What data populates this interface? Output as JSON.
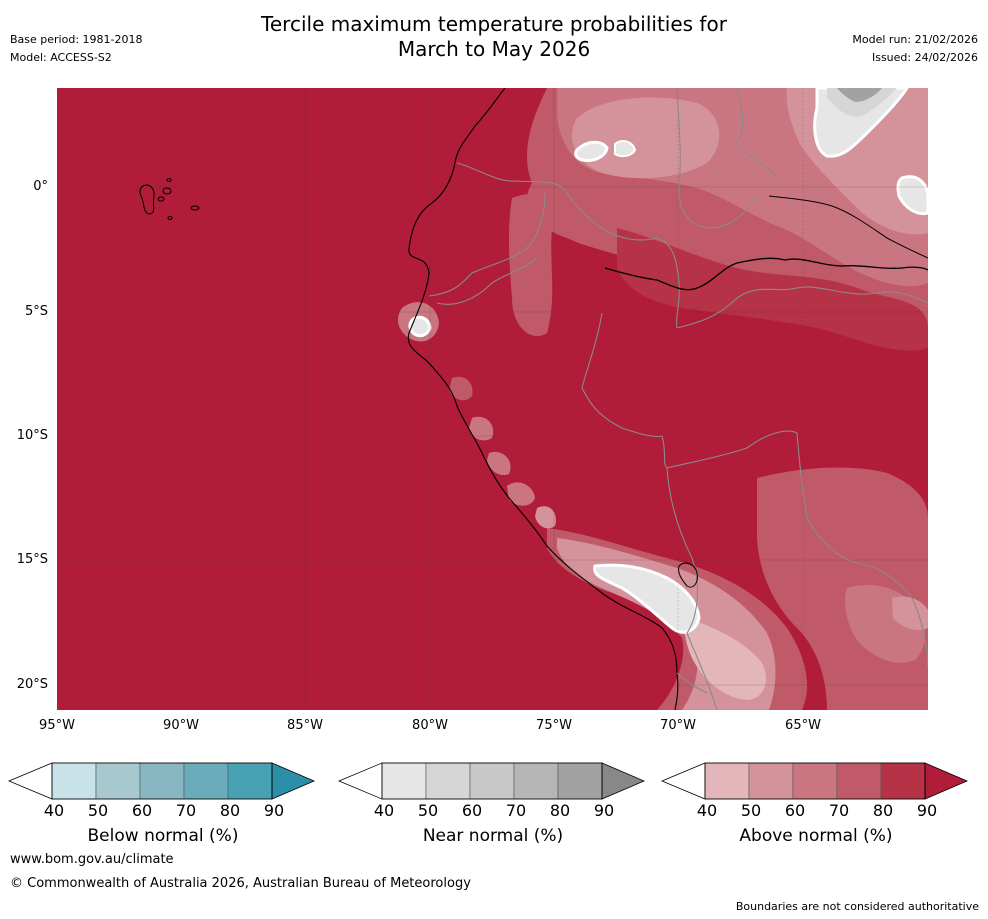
{
  "header": {
    "title_line1": "Tercile maximum temperature probabilities for",
    "title_line2": "March to May 2026",
    "base_period": "Base period: 1981-2018",
    "model": "Model: ACCESS-S2",
    "model_run": "Model run: 21/02/2026",
    "issued": "Issued: 24/02/2026"
  },
  "map": {
    "lat_labels": [
      "0°",
      "5°S",
      "10°S",
      "15°S",
      "20°S"
    ],
    "lon_labels": [
      "95°W",
      "90°W",
      "85°W",
      "80°W",
      "75°W",
      "70°W",
      "65°W"
    ]
  },
  "colorbars": {
    "below": {
      "label": "Below normal (%)",
      "ticks": [
        "40",
        "50",
        "60",
        "70",
        "80",
        "90"
      ],
      "colors": [
        "#c8e2e7",
        "#a6c8ce",
        "#88b6c2",
        "#6aacba",
        "#48a2b4",
        "#2b8fa8"
      ]
    },
    "near": {
      "label": "Near normal (%)",
      "ticks": [
        "40",
        "50",
        "60",
        "70",
        "80",
        "90"
      ],
      "colors": [
        "#e6e6e6",
        "#d6d6d6",
        "#c8c8c8",
        "#b6b6b6",
        "#a2a2a2",
        "#888888"
      ]
    },
    "above": {
      "label": "Above normal (%)",
      "ticks": [
        "40",
        "50",
        "60",
        "70",
        "80",
        "90"
      ],
      "colors": [
        "#e2b6ba",
        "#d4939a",
        "#c97680",
        "#c05a69",
        "#b53247",
        "#b11c38"
      ]
    }
  },
  "footer": {
    "website": "www.bom.gov.au/climate",
    "copyright": "© Commonwealth of Australia 2026, Australian Bureau of Meteorology",
    "disclaimer": "Boundaries are not considered authoritative"
  }
}
